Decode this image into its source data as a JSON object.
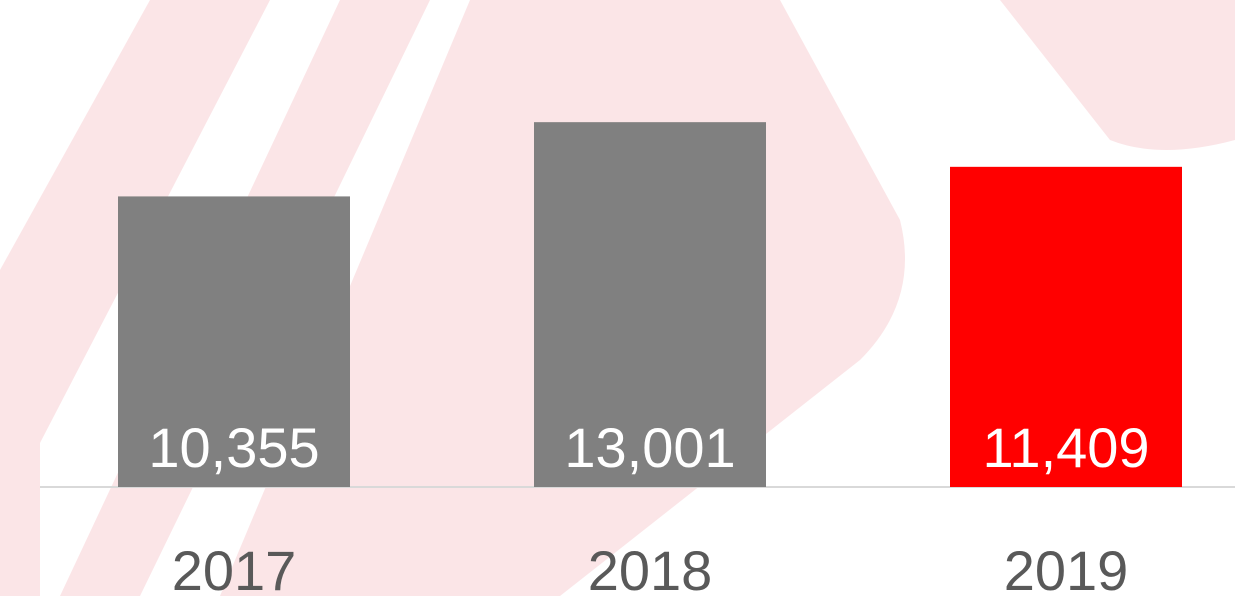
{
  "chart_data": {
    "type": "bar",
    "categories": [
      "2017",
      "2018",
      "2019"
    ],
    "values": [
      10355,
      13001,
      11409
    ],
    "value_labels": [
      "10,355",
      "13,001",
      "11,409"
    ],
    "colors": [
      "#808080",
      "#808080",
      "#ff0000"
    ],
    "ylim": [
      0,
      16000
    ]
  }
}
